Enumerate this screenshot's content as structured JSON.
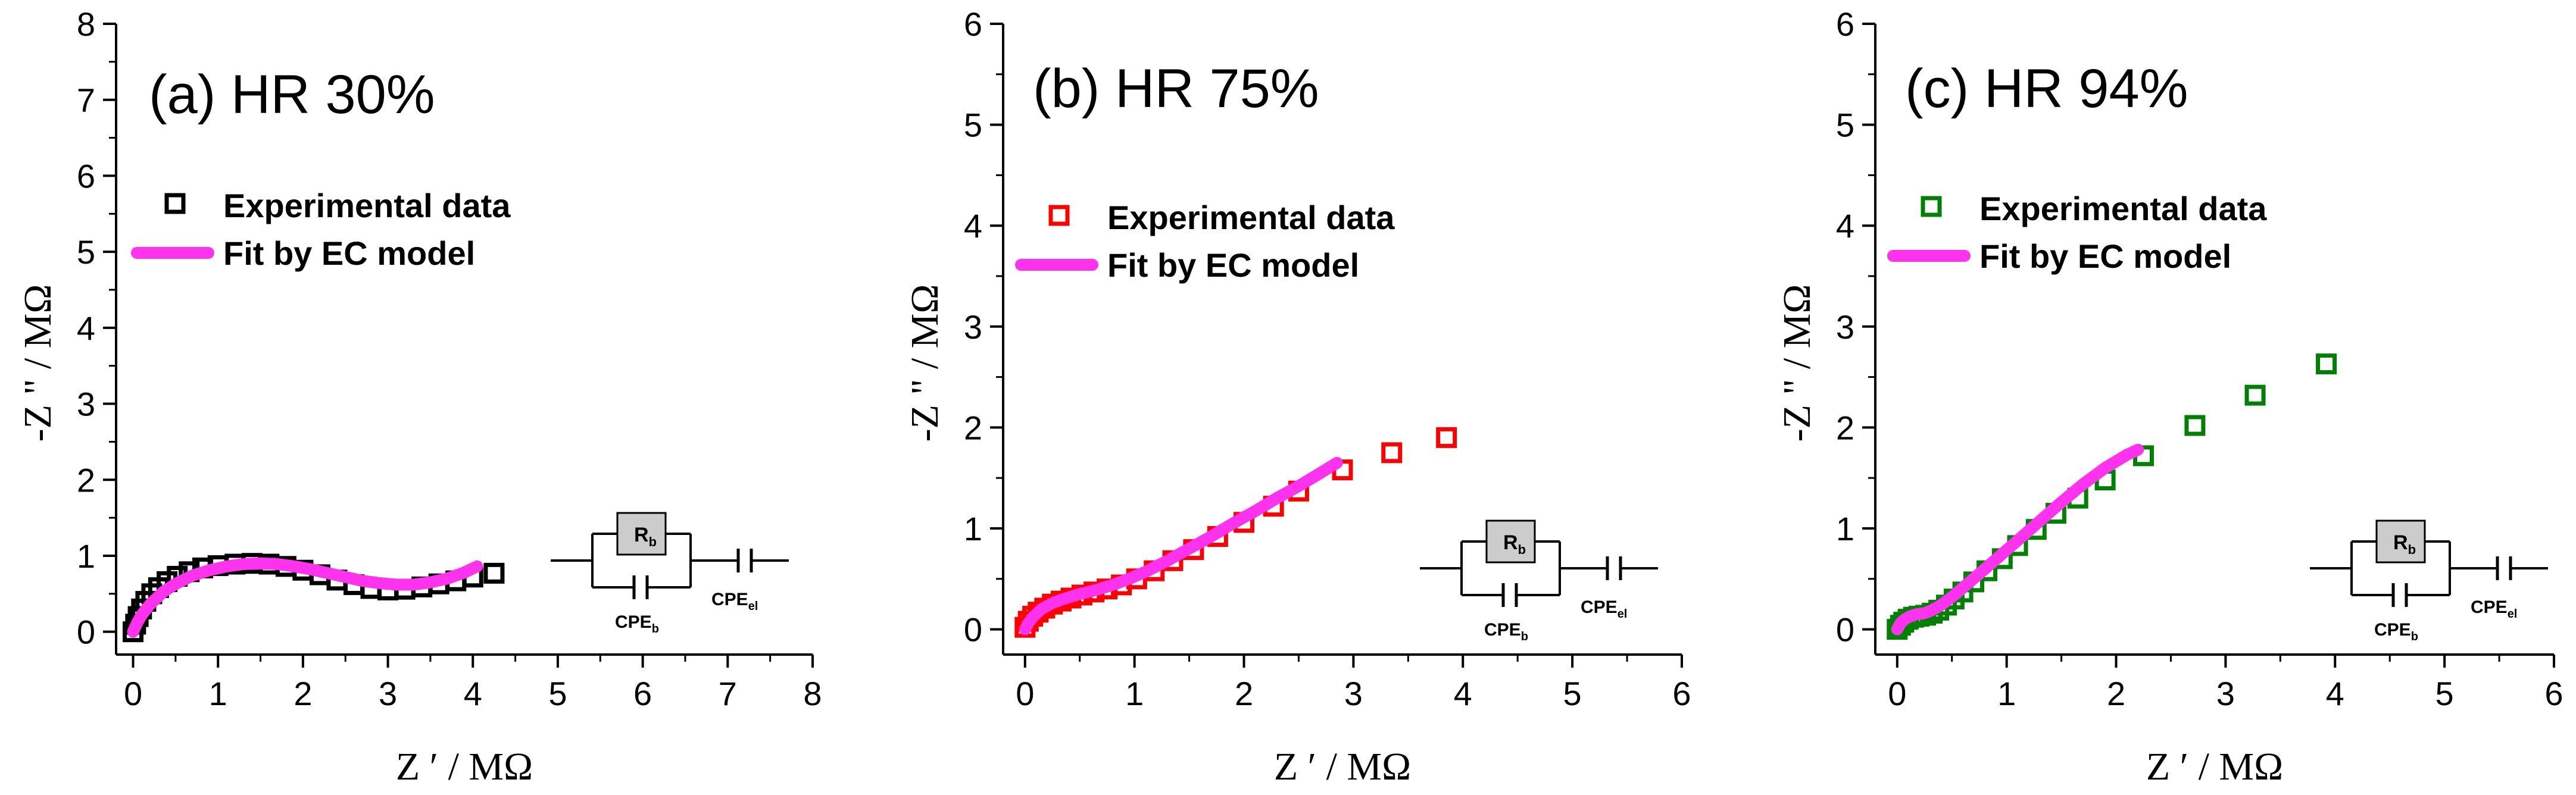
{
  "colors": {
    "fit": "#ff33ee",
    "axis": "#000000",
    "resistor_fill": "#cccccc"
  },
  "circuit": {
    "resistor": "R",
    "resistor_sub": "b",
    "cpe_bulk": "CPE",
    "cpe_bulk_sub": "b",
    "cpe_el": "CPE",
    "cpe_el_sub": "el"
  },
  "chart_data": [
    {
      "type": "scatter",
      "title": "(a) HR 30%",
      "xlabel": "Z ′ / MΩ",
      "ylabel": "-Z \" / MΩ",
      "xlim": [
        -0.2,
        8
      ],
      "ylim": [
        -0.3,
        8
      ],
      "xticks": [
        0,
        1,
        2,
        3,
        4,
        5,
        6,
        7,
        8
      ],
      "yticks": [
        0,
        1,
        2,
        3,
        4,
        5,
        6,
        7,
        8
      ],
      "marker_color": "#000000",
      "legend": [
        "Experimental data",
        "Fit by EC model"
      ],
      "series": [
        {
          "name": "Experimental data",
          "x": [
            0.0,
            0.03,
            0.06,
            0.1,
            0.15,
            0.22,
            0.3,
            0.4,
            0.52,
            0.66,
            0.82,
            1.0,
            1.2,
            1.4,
            1.6,
            1.8,
            2.0,
            2.2,
            2.4,
            2.6,
            2.8,
            3.0,
            3.2,
            3.4,
            3.6,
            3.8,
            4.0,
            4.25
          ],
          "y": [
            0.0,
            0.1,
            0.2,
            0.3,
            0.4,
            0.5,
            0.58,
            0.66,
            0.73,
            0.79,
            0.84,
            0.87,
            0.89,
            0.9,
            0.89,
            0.86,
            0.81,
            0.75,
            0.68,
            0.62,
            0.57,
            0.55,
            0.56,
            0.59,
            0.63,
            0.67,
            0.72,
            0.77
          ]
        },
        {
          "name": "Fit by EC model",
          "x": [
            0.0,
            0.02,
            0.05,
            0.1,
            0.2,
            0.35,
            0.5,
            0.7,
            0.9,
            1.1,
            1.3,
            1.5,
            1.7,
            1.9,
            2.1,
            2.3,
            2.5,
            2.7,
            2.9,
            3.1,
            3.3,
            3.5,
            3.7,
            3.9,
            4.05
          ],
          "y": [
            0.0,
            0.05,
            0.12,
            0.22,
            0.36,
            0.52,
            0.63,
            0.74,
            0.81,
            0.86,
            0.89,
            0.9,
            0.89,
            0.86,
            0.82,
            0.77,
            0.72,
            0.67,
            0.64,
            0.62,
            0.62,
            0.65,
            0.7,
            0.78,
            0.86
          ]
        }
      ]
    },
    {
      "type": "scatter",
      "title": "(b) HR 75%",
      "xlabel": "Z ′ / MΩ",
      "ylabel": "-Z \" / MΩ",
      "xlim": [
        -0.2,
        6
      ],
      "ylim": [
        -0.25,
        6
      ],
      "xticks": [
        0,
        1,
        2,
        3,
        4,
        5,
        6
      ],
      "yticks": [
        0,
        1,
        2,
        3,
        4,
        5,
        6
      ],
      "marker_color": "#ff0000",
      "legend": [
        "Experimental data",
        "Fit by EC model"
      ],
      "series": [
        {
          "name": "Experimental data",
          "x": [
            0.0,
            0.03,
            0.07,
            0.12,
            0.18,
            0.25,
            0.33,
            0.42,
            0.52,
            0.63,
            0.75,
            0.88,
            1.02,
            1.18,
            1.35,
            1.54,
            1.76,
            2.0,
            2.27,
            2.5,
            2.9,
            3.35,
            3.85
          ],
          "y": [
            0.02,
            0.08,
            0.13,
            0.17,
            0.21,
            0.25,
            0.28,
            0.31,
            0.34,
            0.37,
            0.4,
            0.44,
            0.5,
            0.58,
            0.68,
            0.79,
            0.92,
            1.06,
            1.22,
            1.37,
            1.58,
            1.75,
            1.9
          ]
        },
        {
          "name": "Fit by EC model",
          "x": [
            0.0,
            0.03,
            0.08,
            0.15,
            0.25,
            0.35,
            0.5,
            0.65,
            0.8,
            0.95,
            1.1,
            1.3,
            1.5,
            1.7,
            1.9,
            2.1,
            2.3,
            2.5,
            2.7,
            2.85
          ],
          "y": [
            0.0,
            0.06,
            0.13,
            0.2,
            0.26,
            0.3,
            0.35,
            0.39,
            0.44,
            0.5,
            0.57,
            0.68,
            0.8,
            0.92,
            1.05,
            1.17,
            1.3,
            1.42,
            1.55,
            1.65
          ]
        }
      ]
    },
    {
      "type": "scatter",
      "title": "(c) HR 94%",
      "xlabel": "Z ′ / MΩ",
      "ylabel": "-Z \" / MΩ",
      "xlim": [
        -0.2,
        6
      ],
      "ylim": [
        -0.25,
        6
      ],
      "xticks": [
        0,
        1,
        2,
        3,
        4,
        5,
        6
      ],
      "yticks": [
        0,
        1,
        2,
        3,
        4,
        5,
        6
      ],
      "marker_color": "#008000",
      "legend": [
        "Experimental data",
        "Fit by EC model"
      ],
      "series": [
        {
          "name": "Experimental data",
          "x": [
            0.0,
            0.03,
            0.06,
            0.1,
            0.15,
            0.2,
            0.26,
            0.32,
            0.38,
            0.45,
            0.52,
            0.6,
            0.7,
            0.82,
            0.96,
            1.1,
            1.27,
            1.45,
            1.65,
            1.9,
            2.25,
            2.72,
            3.27,
            3.92
          ],
          "y": [
            0.0,
            0.04,
            0.07,
            0.1,
            0.12,
            0.13,
            0.14,
            0.16,
            0.19,
            0.24,
            0.3,
            0.37,
            0.47,
            0.58,
            0.7,
            0.83,
            0.99,
            1.15,
            1.3,
            1.48,
            1.72,
            2.02,
            2.32,
            2.63
          ]
        },
        {
          "name": "Fit by EC model",
          "x": [
            0.0,
            0.03,
            0.07,
            0.12,
            0.18,
            0.25,
            0.32,
            0.4,
            0.5,
            0.62,
            0.76,
            0.92,
            1.1,
            1.3,
            1.5,
            1.7,
            1.9,
            2.1,
            2.2
          ],
          "y": [
            0.0,
            0.06,
            0.1,
            0.13,
            0.15,
            0.16,
            0.19,
            0.24,
            0.32,
            0.43,
            0.56,
            0.71,
            0.88,
            1.07,
            1.26,
            1.44,
            1.6,
            1.73,
            1.78
          ]
        }
      ]
    }
  ]
}
